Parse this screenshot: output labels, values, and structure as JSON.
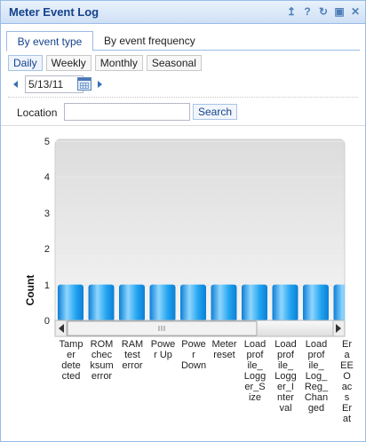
{
  "window": {
    "title": "Meter Event Log",
    "tools": [
      "collapse-icon",
      "help-icon",
      "refresh-icon",
      "maximize-icon",
      "close-icon"
    ]
  },
  "tabs": [
    {
      "label": "By event type",
      "active": true
    },
    {
      "label": "By event frequency",
      "active": false
    }
  ],
  "periods": [
    {
      "label": "Daily",
      "selected": true
    },
    {
      "label": "Weekly",
      "selected": false
    },
    {
      "label": "Monthly",
      "selected": false
    },
    {
      "label": "Seasonal",
      "selected": false
    }
  ],
  "date": {
    "value": "5/13/11"
  },
  "location": {
    "label": "Location",
    "value": "",
    "search_label": "Search"
  },
  "colors": {
    "accent": "#15428b",
    "bar": "#2aa8f0",
    "border": "#99bbe8"
  },
  "chart_data": {
    "type": "bar",
    "ylabel": "Count",
    "ylim": [
      0,
      5
    ],
    "yticks": [
      "5",
      "4",
      "3",
      "2",
      "1",
      "0"
    ],
    "grid": true,
    "categories": [
      "Tamper detected",
      "ROM checksum error",
      "RAM test error",
      "Power Up",
      "Power Down",
      "Meter reset",
      "Load profile_Logger_Size",
      "Load profile_Logger_Interval",
      "Load profile_Log_Reg_Changed",
      "Error a EEP O ac s Er at"
    ],
    "category_labels": [
      "Tamp\ner\ndete\ncted",
      "ROM\nchec\nksum\nerror",
      "RAM\ntest\nerror",
      "Powe\nr Up",
      "Powe\nr\nDown",
      "Meter\nreset",
      "Load\nprof\nile_\nLogg\ner_S\nize",
      "Load\nprof\nile_\nLogg\ner_I\nnter\nval",
      "Load\nprof\nile_\nLog_\nReg_\nChan\nged",
      "Er\na\nEE\nO\nac\ns\nEr\nat"
    ],
    "values": [
      1,
      1,
      1,
      1,
      1,
      1,
      1,
      1,
      1,
      1
    ]
  }
}
